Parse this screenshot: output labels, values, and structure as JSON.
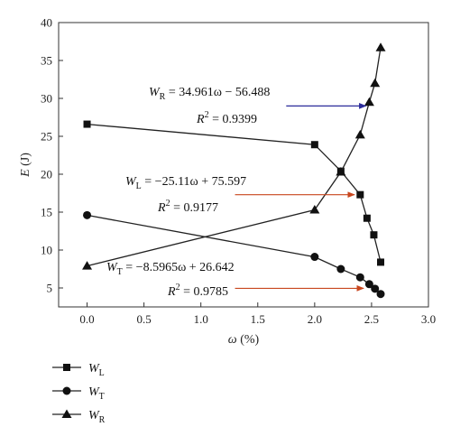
{
  "chart_data": {
    "type": "line",
    "xlabel_var": "ω",
    "xlabel_unit": " (%)",
    "ylabel_var": "E",
    "ylabel_unit": " (J)",
    "xlim": [
      -0.25,
      3.0
    ],
    "ylim": [
      2.5,
      40
    ],
    "xticks": [
      "0.0",
      "0.5",
      "1.0",
      "1.5",
      "2.0",
      "2.5",
      "3.0"
    ],
    "yticks": [
      "5",
      "10",
      "15",
      "20",
      "25",
      "30",
      "35",
      "40"
    ],
    "xtick_values": [
      0,
      0.5,
      1.0,
      1.5,
      2.0,
      2.5,
      3.0
    ],
    "ytick_values": [
      5,
      10,
      15,
      20,
      25,
      30,
      35,
      40
    ],
    "grid": false,
    "legend_position": "below-left",
    "series": [
      {
        "key": "WL",
        "name_main": "W",
        "name_sub": "L",
        "marker": "square",
        "x": [
          0.0,
          2.0,
          2.23,
          2.4,
          2.46,
          2.52,
          2.58
        ],
        "y": [
          26.6,
          23.9,
          20.4,
          17.3,
          14.2,
          12.0,
          8.4
        ]
      },
      {
        "key": "WT",
        "name_main": "W",
        "name_sub": "T",
        "marker": "circle",
        "x": [
          0.0,
          2.0,
          2.23,
          2.4,
          2.48,
          2.53,
          2.58
        ],
        "y": [
          14.6,
          9.1,
          7.5,
          6.4,
          5.5,
          4.9,
          4.2
        ]
      },
      {
        "key": "WR",
        "name_main": "W",
        "name_sub": "R",
        "marker": "triangle",
        "x": [
          0.0,
          2.0,
          2.23,
          2.4,
          2.48,
          2.53,
          2.58
        ],
        "y": [
          7.9,
          15.3,
          20.3,
          25.2,
          29.5,
          32.0,
          36.7
        ]
      }
    ],
    "annotations": [
      {
        "key": "R",
        "eq_var": "W",
        "eq_sub": "R",
        "eq_rhs": " = 34.961ω − 56.488",
        "r2_var": "R",
        "r2_sup": "2",
        "r2_rhs": " = 0.9399",
        "arrow_color": "#2b2b9a",
        "arrow_from": [
          1.75,
          29.0
        ],
        "arrow_to": [
          2.45,
          29.0
        ]
      },
      {
        "key": "L",
        "eq_var": "W",
        "eq_sub": "L",
        "eq_rhs": " = −25.11ω + 75.597",
        "r2_var": "R",
        "r2_sup": "2",
        "r2_rhs": " = 0.9177",
        "arrow_color": "#c8461e",
        "arrow_from": [
          1.3,
          17.3
        ],
        "arrow_to": [
          2.35,
          17.3
        ]
      },
      {
        "key": "T",
        "eq_var": "W",
        "eq_sub": "T",
        "eq_rhs": " = −8.5965ω + 26.642",
        "r2_var": "R",
        "r2_sup": "2",
        "r2_rhs": " = 0.9785",
        "arrow_color": "#c8461e",
        "arrow_from": [
          1.3,
          4.95
        ],
        "arrow_to": [
          2.43,
          4.95
        ]
      }
    ]
  }
}
